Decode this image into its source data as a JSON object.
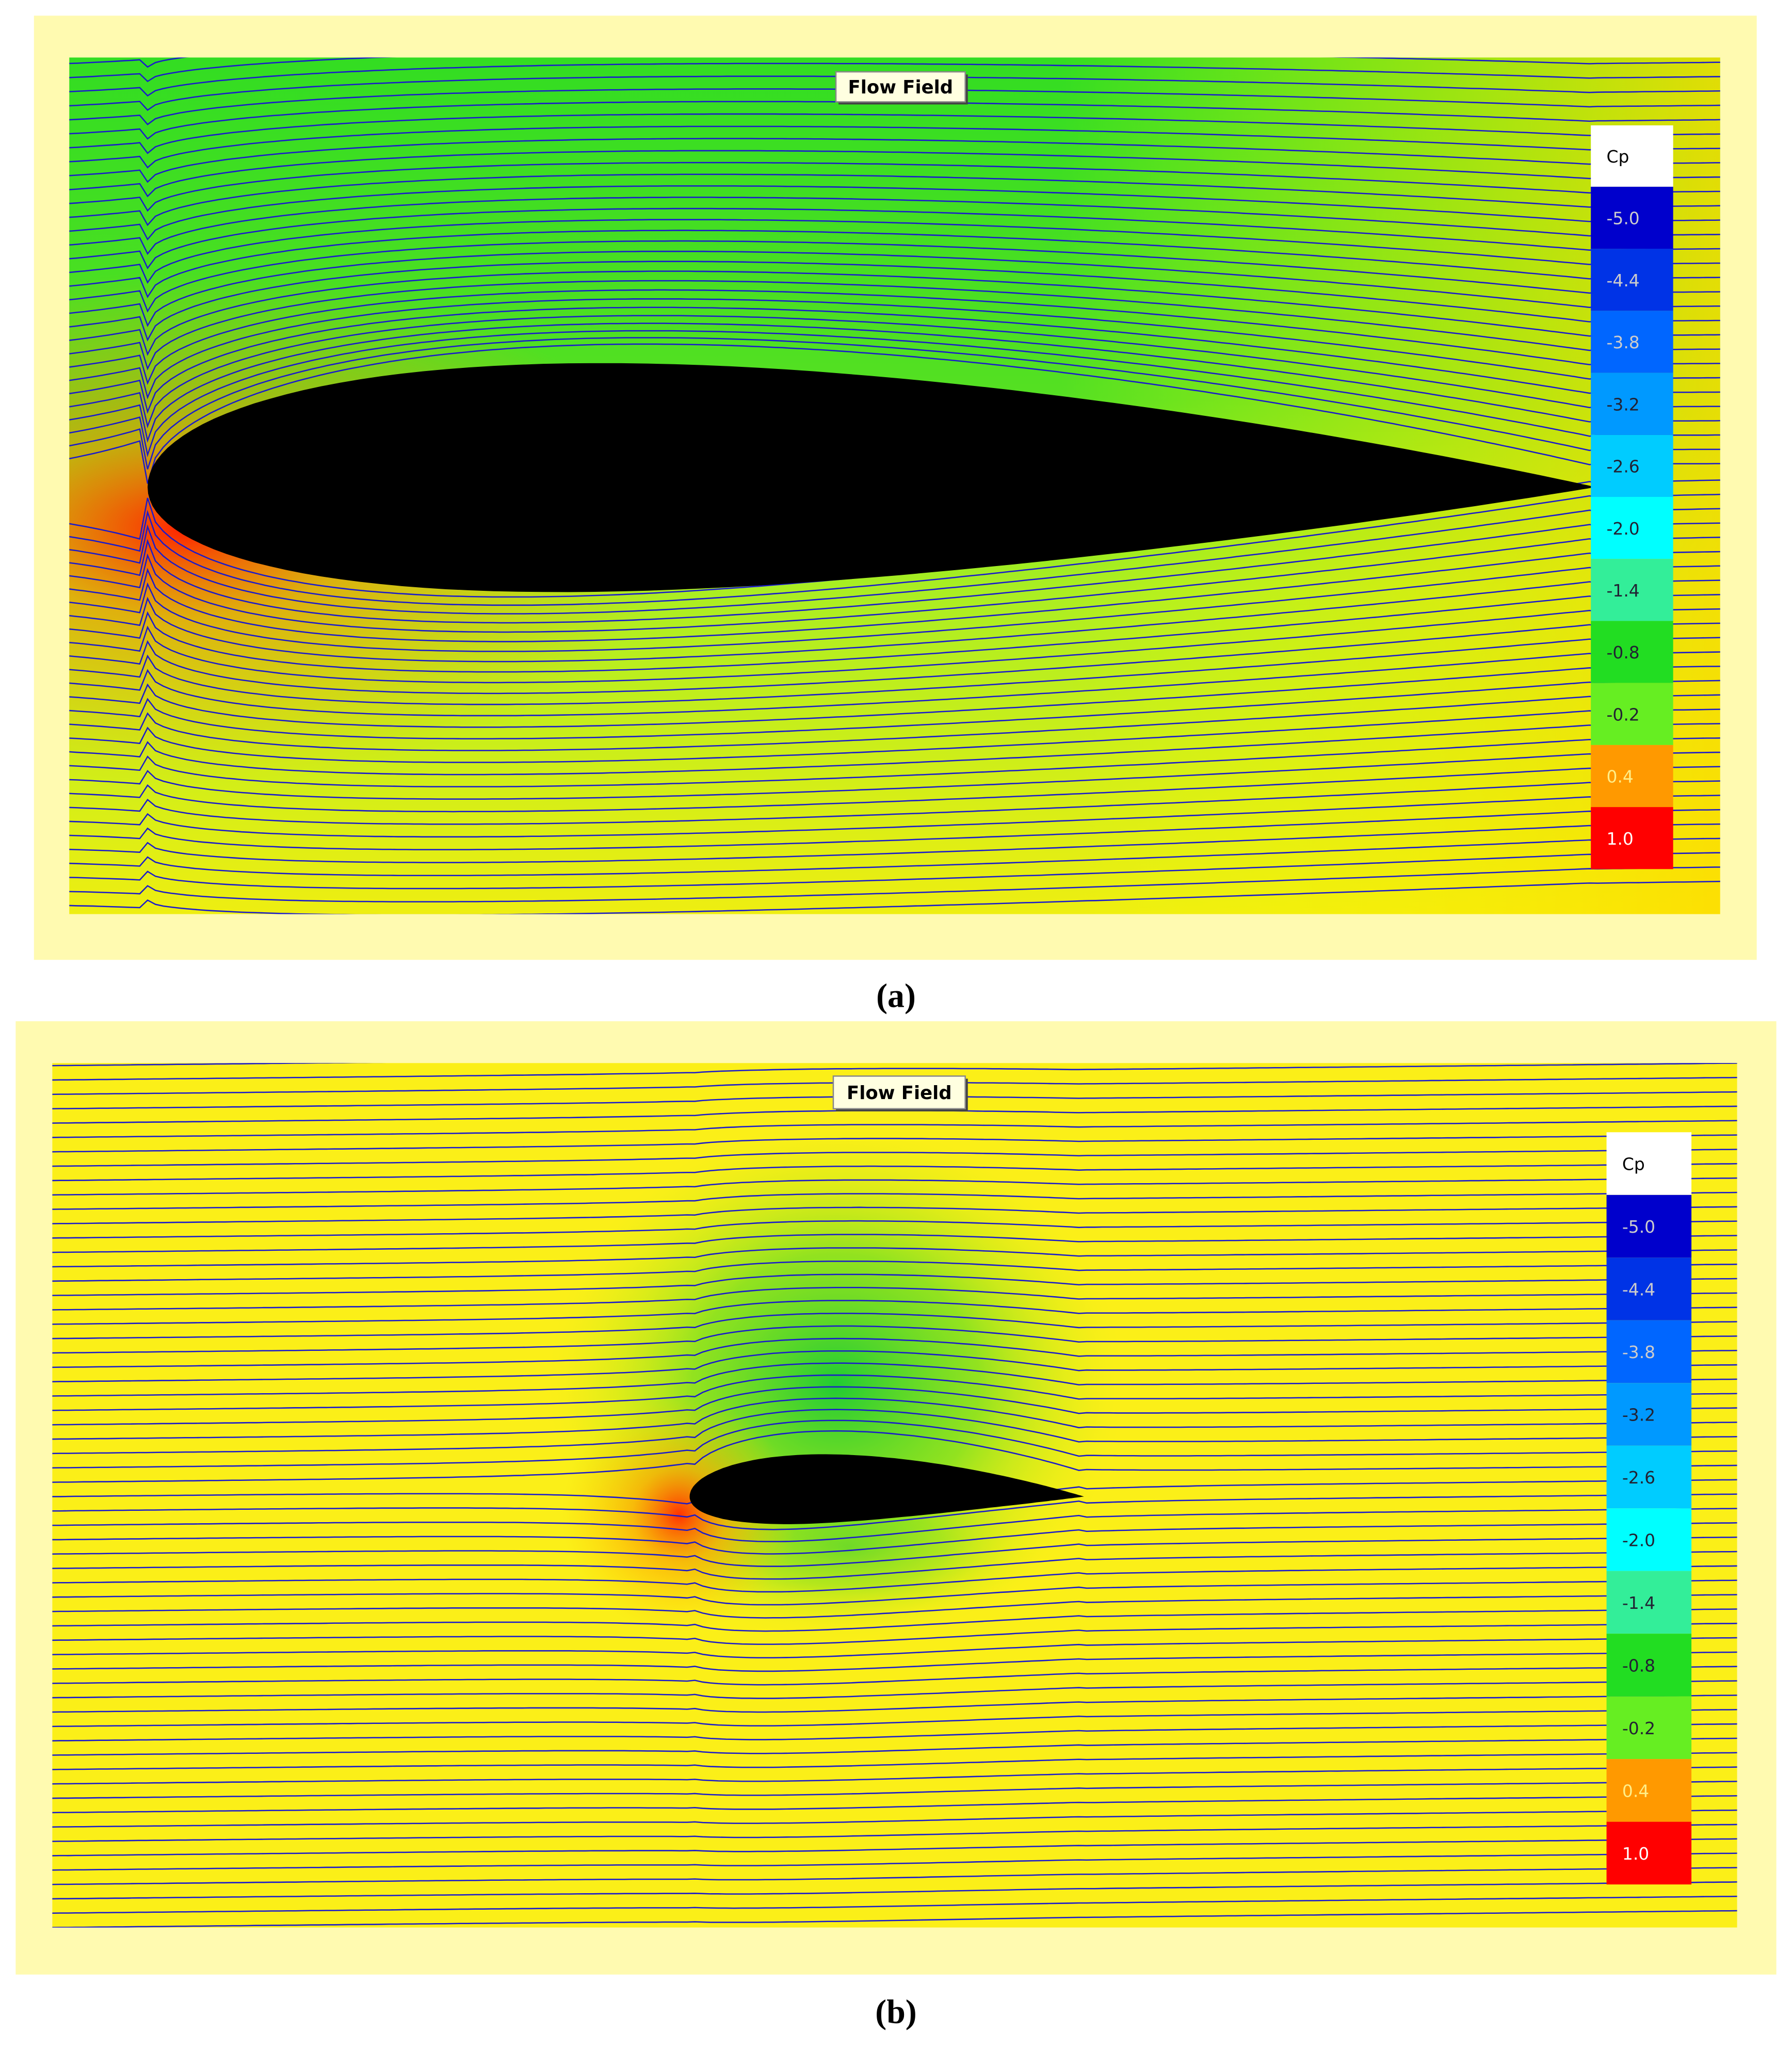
{
  "panels": [
    {
      "title": "Flow Field",
      "caption": "(a)",
      "legend": {
        "title": "Cp",
        "items": [
          {
            "label": "-5.0",
            "color": "#0000cc"
          },
          {
            "label": "-4.4",
            "color": "#0033e6"
          },
          {
            "label": "-3.8",
            "color": "#0066ff"
          },
          {
            "label": "-3.2",
            "color": "#0099ff"
          },
          {
            "label": "-2.6",
            "color": "#00ccff"
          },
          {
            "label": "-2.0",
            "color": "#00ffff"
          },
          {
            "label": "-1.4",
            "color": "#33ee99"
          },
          {
            "label": "-0.8",
            "color": "#22dd22"
          },
          {
            "label": "-0.2",
            "color": "#66ee22"
          },
          {
            "label": "0.4",
            "color": "#ff9900"
          },
          {
            "label": "1.0",
            "color": "#ff0000"
          }
        ]
      }
    },
    {
      "title": "Flow Field",
      "caption": "(b)",
      "legend": {
        "title": "Cp",
        "items": [
          {
            "label": "-5.0",
            "color": "#0000cc"
          },
          {
            "label": "-4.4",
            "color": "#0033e6"
          },
          {
            "label": "-3.8",
            "color": "#0066ff"
          },
          {
            "label": "-3.2",
            "color": "#0099ff"
          },
          {
            "label": "-2.6",
            "color": "#00ccff"
          },
          {
            "label": "-2.0",
            "color": "#00ffff"
          },
          {
            "label": "-1.4",
            "color": "#33ee99"
          },
          {
            "label": "-0.8",
            "color": "#22dd22"
          },
          {
            "label": "-0.2",
            "color": "#66ee22"
          },
          {
            "label": "0.4",
            "color": "#ff9900"
          },
          {
            "label": "1.0",
            "color": "#ff0000"
          }
        ]
      }
    }
  ]
}
